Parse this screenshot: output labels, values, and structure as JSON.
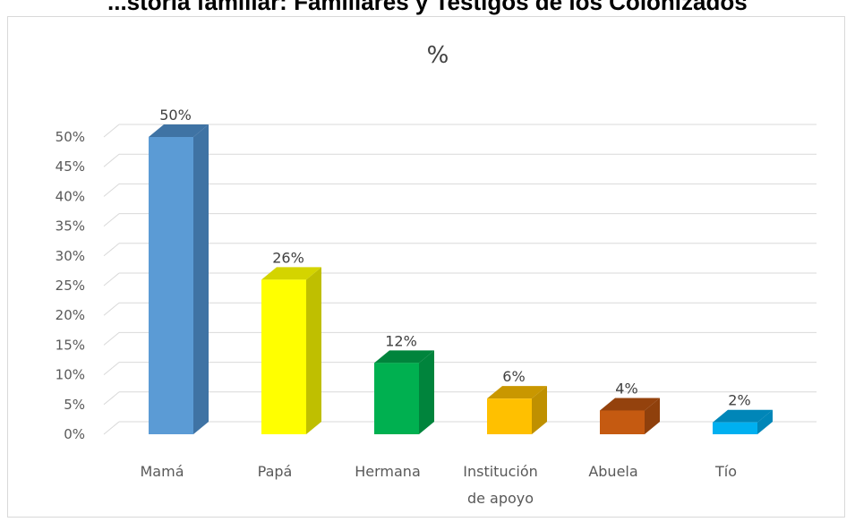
{
  "header_fragment": "...storia familiar: Familiares y Testigos de los Colonizados",
  "chart_data": {
    "type": "bar",
    "title": "%",
    "xlabel": "",
    "ylabel": "",
    "categories": [
      "Mamá",
      "Papá",
      "Hermana",
      "Institución de apoyo",
      "Abuela",
      "Tío"
    ],
    "category_lines": [
      [
        "Mamá"
      ],
      [
        "Papá"
      ],
      [
        "Hermana"
      ],
      [
        "Institución",
        "de apoyo"
      ],
      [
        "Abuela"
      ],
      [
        "Tío"
      ]
    ],
    "values": [
      50,
      26,
      12,
      6,
      4,
      2
    ],
    "data_labels": [
      "50%",
      "26%",
      "12%",
      "6%",
      "4%",
      "2%"
    ],
    "ylim": [
      0,
      50
    ],
    "yticks": [
      0,
      5,
      10,
      15,
      20,
      25,
      30,
      35,
      40,
      45,
      50
    ],
    "ytick_labels": [
      "0%",
      "5%",
      "10%",
      "15%",
      "20%",
      "25%",
      "30%",
      "35%",
      "40%",
      "45%",
      "50%"
    ],
    "grid": true,
    "legend": "none",
    "colors": {
      "front": [
        "#5b9bd5",
        "#ffff00",
        "#00b050",
        "#ffc000",
        "#c55a11",
        "#00b0f0"
      ],
      "side": [
        "#3f73a4",
        "#bfbf00",
        "#00843c",
        "#bf9000",
        "#8f400c",
        "#0086b8"
      ],
      "top": [
        "#3f73a4",
        "#d4d400",
        "#00843c",
        "#c99700",
        "#94420d",
        "#0086b8"
      ]
    }
  }
}
